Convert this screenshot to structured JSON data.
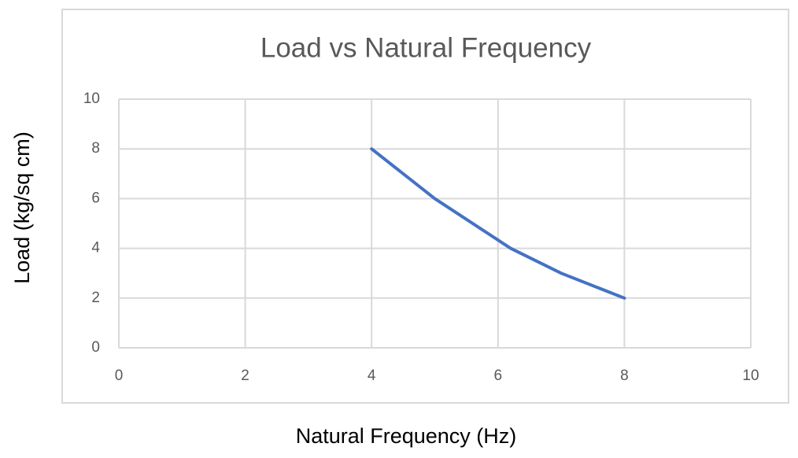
{
  "chart_data": {
    "type": "line",
    "title": "Load vs Natural Frequency",
    "x_label": "Natural Frequency (Hz)",
    "y_label": "Load (kg/sq cm)",
    "x": [
      4,
      5,
      6.2,
      7,
      8
    ],
    "series": [
      {
        "name": "Load",
        "color": "#4472c4",
        "values": [
          8,
          6,
          4,
          3,
          2
        ]
      }
    ],
    "xlim": [
      0,
      10
    ],
    "xticks": [
      0,
      2,
      4,
      6,
      8,
      10
    ],
    "ylim": [
      0,
      10
    ],
    "yticks": [
      0,
      2,
      4,
      6,
      8,
      10
    ],
    "grid": true
  }
}
